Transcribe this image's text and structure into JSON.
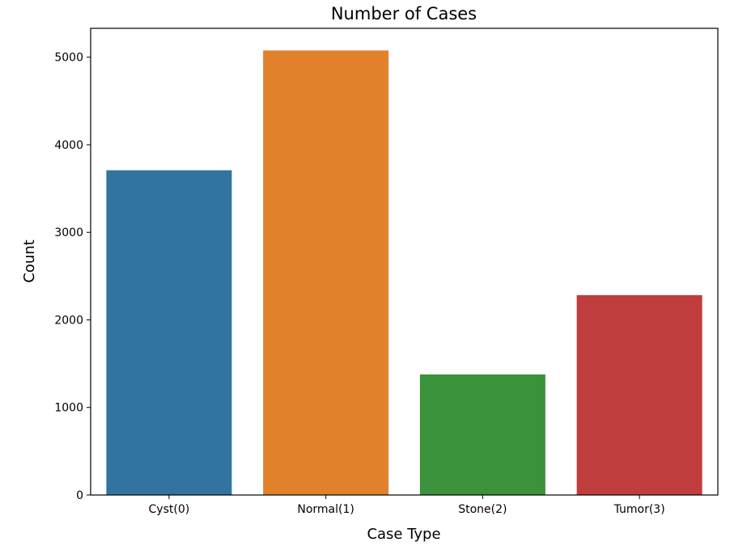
{
  "chart_data": {
    "type": "bar",
    "title": "Number of Cases",
    "xlabel": "Case Type",
    "ylabel": "Count",
    "categories": [
      "Cyst(0)",
      "Normal(1)",
      "Stone(2)",
      "Tumor(3)"
    ],
    "values": [
      3709,
      5077,
      1377,
      2283
    ],
    "colors": [
      "#3274a1",
      "#e1812c",
      "#3a923a",
      "#c03d3e"
    ],
    "ylim": [
      0,
      5330
    ],
    "yticks": [
      0,
      1000,
      2000,
      3000,
      4000,
      5000
    ],
    "grid": false,
    "legend": "none"
  }
}
